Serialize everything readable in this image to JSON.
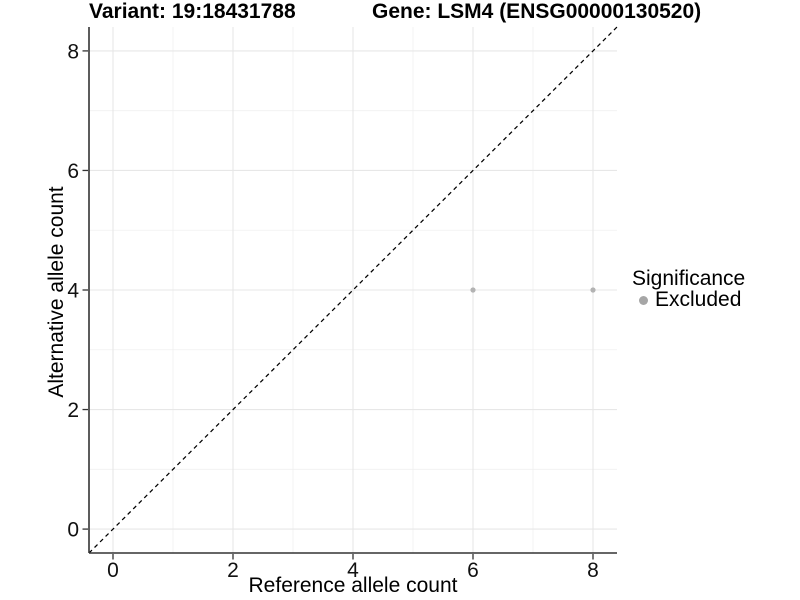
{
  "figure": {
    "title_variant": "Variant: 19:18431788",
    "title_gene": "Gene: LSM4 (ENSG00000130520)"
  },
  "chart_data": {
    "type": "scatter",
    "title": "Variant: 19:18431788   Gene: LSM4 (ENSG00000130520)",
    "xlabel": "Reference allele count",
    "ylabel": "Alternative allele count",
    "xlim": [
      -0.4,
      8.4
    ],
    "ylim": [
      -0.4,
      8.4
    ],
    "x_ticks": [
      0,
      2,
      4,
      6,
      8
    ],
    "y_ticks": [
      0,
      2,
      4,
      6,
      8
    ],
    "minor_gridlines_x": [
      1,
      3,
      5,
      7
    ],
    "minor_gridlines_y": [
      1,
      3,
      5,
      7
    ],
    "grid": true,
    "identity_line": {
      "equation": "y = x",
      "style": "dashed",
      "color": "#000000"
    },
    "series": [
      {
        "name": "Excluded",
        "color": "#b3b3b3",
        "points": [
          {
            "x": 6,
            "y": 4
          },
          {
            "x": 8,
            "y": 4
          }
        ]
      }
    ],
    "legend": {
      "title": "Significance",
      "position": "right",
      "items": [
        {
          "label": "Excluded",
          "color": "#a6a6a6"
        }
      ]
    },
    "colors": {
      "background": "#ffffff",
      "axis_line": "#333333",
      "grid_major": "#e7e7e7",
      "grid_minor": "#f0f0f0",
      "tick_label": "#111111",
      "point": "#b3b3b3",
      "legend_dot": "#a6a6a6"
    }
  }
}
